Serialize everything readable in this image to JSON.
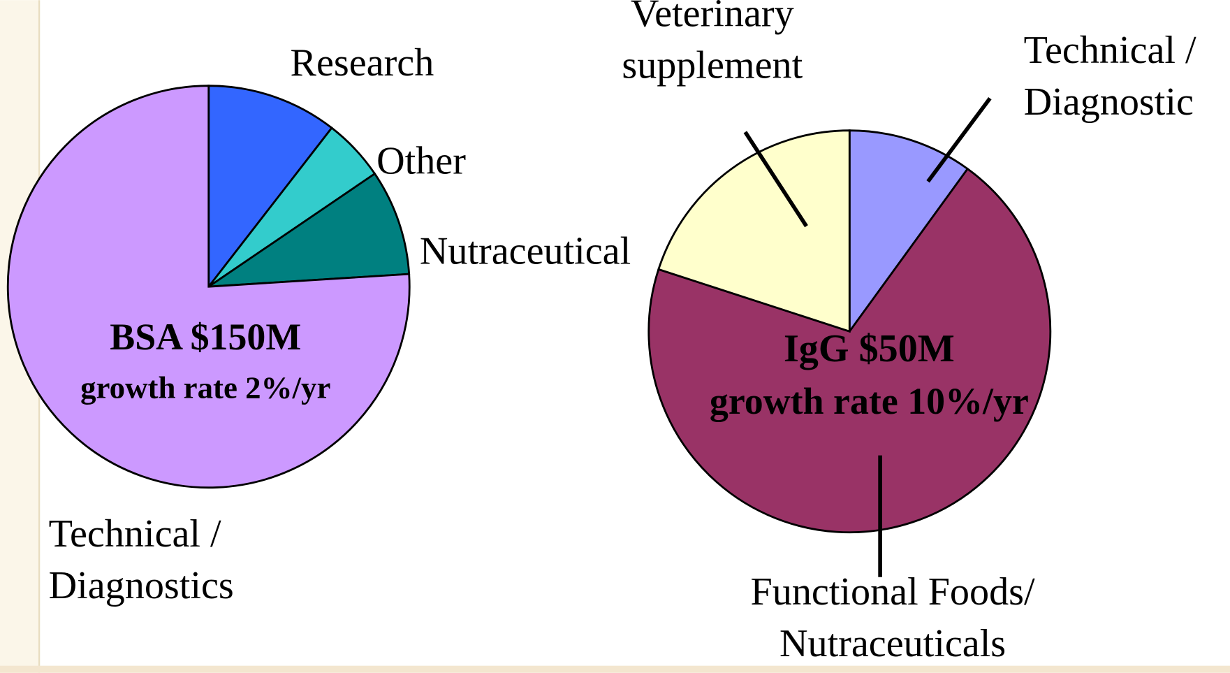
{
  "chart_data": [
    {
      "type": "pie",
      "title": "BSA $150M",
      "subtitle": "growth rate 2%/yr",
      "categories": [
        "Research",
        "Other",
        "Nutraceutical",
        "Technical / Diagnostics"
      ],
      "values": [
        10.5,
        5,
        8.5,
        76
      ],
      "colors": [
        "#3366ff",
        "#33cccc",
        "#008080",
        "#cc99ff"
      ]
    },
    {
      "type": "pie",
      "title": "IgG $50M",
      "subtitle": "growth rate 10%/yr",
      "categories": [
        "Technical / Diagnostic",
        "Functional Foods/ Nutraceuticals",
        "Veterinary supplement"
      ],
      "values": [
        10,
        70,
        20
      ],
      "colors": [
        "#9999ff",
        "#993366",
        "#ffffcc"
      ]
    }
  ]
}
